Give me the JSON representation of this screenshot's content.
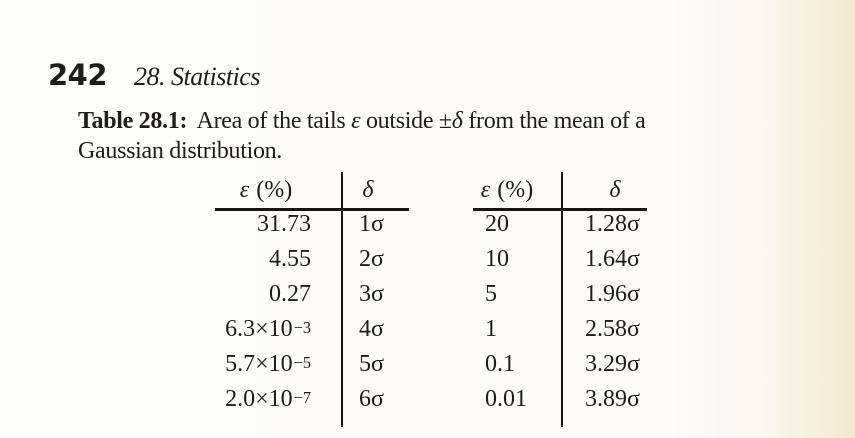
{
  "page": {
    "number": "242",
    "chapter": "28. Statistics"
  },
  "caption": {
    "label": "Table 28.1:",
    "text_before_epsilon": " Area of the tails ",
    "epsilon_symbol": "ε",
    "text_between": " outside ±",
    "delta_symbol": "δ",
    "text_after": " from the mean of a",
    "line2": "Gaussian distribution."
  },
  "table": {
    "headers": {
      "epsilon_symbol": "ε",
      "percent": "(%)",
      "delta_symbol": "δ"
    },
    "rows": [
      {
        "eps1": "31.73",
        "delta1": "1σ",
        "eps2": "20",
        "delta2": "1.28σ"
      },
      {
        "eps1": "4.55",
        "delta1": "2σ",
        "eps2": "10",
        "delta2": "1.64σ"
      },
      {
        "eps1": "0.27",
        "delta1": "3σ",
        "eps2": "5",
        "delta2": "1.96σ"
      },
      {
        "eps1_mantissa": "6.3×10",
        "eps1_exp": "−3",
        "delta1": "4σ",
        "eps2": "1",
        "delta2": "2.58σ"
      },
      {
        "eps1_mantissa": "5.7×10",
        "eps1_exp": "−5",
        "delta1": "5σ",
        "eps2": "0.1",
        "delta2": "3.29σ"
      },
      {
        "eps1_mantissa": "2.0×10",
        "eps1_exp": "−7",
        "delta1": "6σ",
        "eps2": "0.01",
        "delta2": "3.89σ"
      }
    ]
  },
  "colors": {
    "ink": "#1f1d1a",
    "paper": "#fdfcf8",
    "paper_edge": "#f3e7cf"
  }
}
